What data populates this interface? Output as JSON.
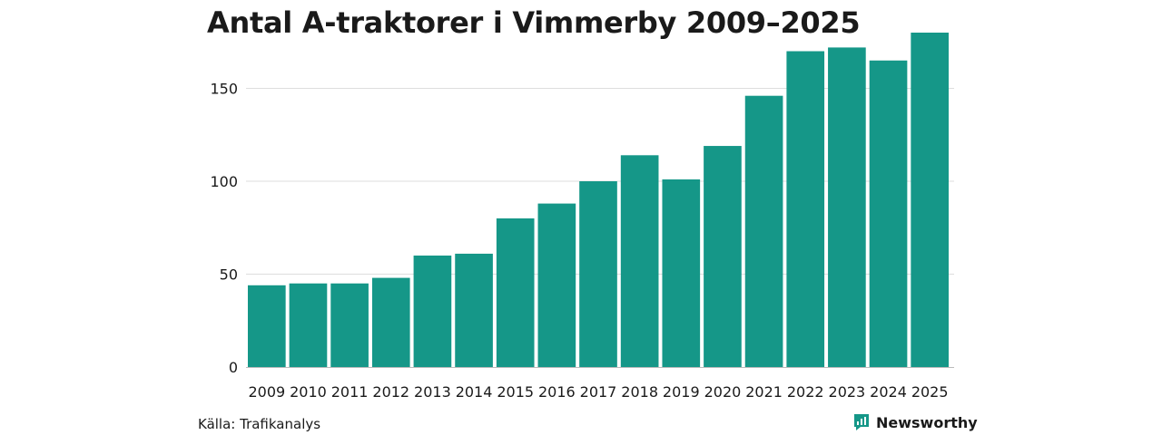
{
  "chart_data": {
    "type": "bar",
    "title": "Antal A-traktorer i Vimmerby 2009–2025",
    "xlabel": "",
    "ylabel": "",
    "ylim": [
      0,
      180
    ],
    "yticks": [
      0,
      50,
      100,
      150
    ],
    "grid": true,
    "categories": [
      "2009",
      "2010",
      "2011",
      "2012",
      "2013",
      "2014",
      "2015",
      "2016",
      "2017",
      "2018",
      "2019",
      "2020",
      "2021",
      "2022",
      "2023",
      "2024",
      "2025"
    ],
    "values": [
      44,
      45,
      45,
      48,
      60,
      61,
      80,
      88,
      100,
      114,
      101,
      119,
      146,
      170,
      172,
      165,
      180
    ],
    "bar_color": "#159788",
    "grid_color": "#dddddd"
  },
  "footer": {
    "source": "Källa: Trafikanalys",
    "brand": "Newsworthy",
    "brand_color": "#159788",
    "icon": "newsworthy-logo-icon"
  }
}
